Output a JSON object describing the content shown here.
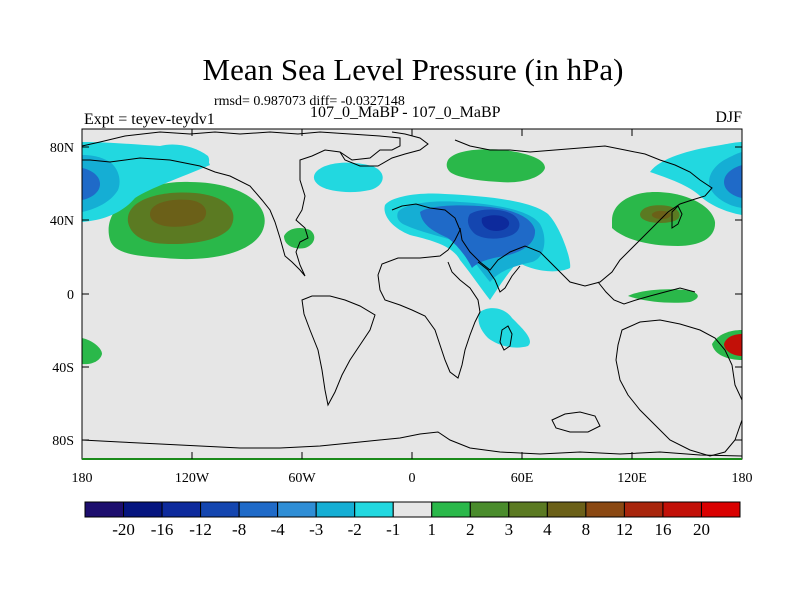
{
  "title": "Mean Sea Level Pressure (in hPa)",
  "stats": "rmsd= 0.987073 diff= -0.0327148",
  "left_label": "Expt = teyev-teydv1",
  "center_label": "107_0_MaBP - 107_0_MaBP",
  "right_label": "DJF",
  "lat_ticks": [
    "80N",
    "40N",
    "0",
    "40S",
    "80S"
  ],
  "lon_ticks": [
    "180",
    "120W",
    "60W",
    "0",
    "60E",
    "120E",
    "180"
  ],
  "colorbar": {
    "labels": [
      "-20",
      "-16",
      "-12",
      "-8",
      "-4",
      "-3",
      "-2",
      "-1",
      "1",
      "2",
      "3",
      "4",
      "8",
      "12",
      "16",
      "20"
    ],
    "colors": [
      "#1d0e6e",
      "#05157f",
      "#0d2a9c",
      "#1446b0",
      "#1f6ac8",
      "#2f8ed6",
      "#15aed4",
      "#22d8e0",
      "#e6e6e6",
      "#2ab84a",
      "#4a8c2c",
      "#5b7a22",
      "#6b6018",
      "#8a4812",
      "#a8250c",
      "#c21008",
      "#d90000"
    ]
  },
  "colors": {
    "background": "#e6e6e6",
    "positive_light": "#2ab84a",
    "positive_mid": "#5b7a22",
    "positive_strong": "#6b6018",
    "negative_light": "#22d8e0",
    "negative_mid": "#15aed4",
    "negative_strong": "#1f6ac8",
    "negative_core": "#1446b0",
    "positive_red": "#c21008"
  }
}
